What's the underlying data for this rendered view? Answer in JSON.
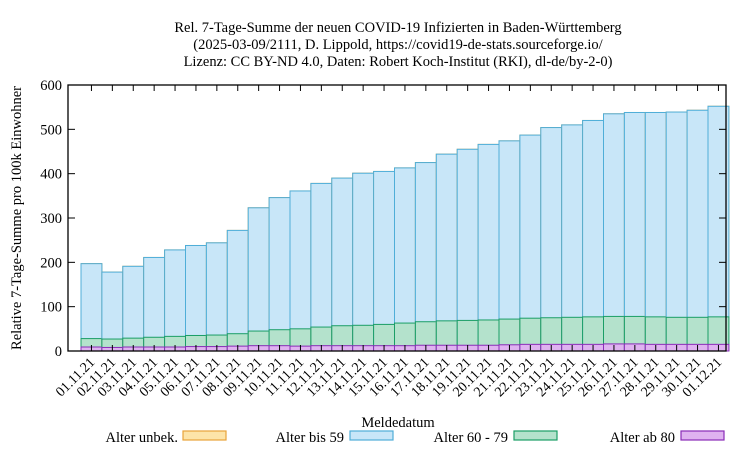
{
  "chart_data": {
    "type": "bar",
    "stacked": true,
    "title_lines": [
      "Rel. 7-Tage-Summe der neuen COVID-19 Infizierten in Baden-Württemberg",
      "(2025-03-09/2111, D. Lippold, https://covid19-de-stats.sourceforge.io/",
      "Lizenz: CC BY-ND 4.0, Daten: Robert Koch-Institut (RKI), dl-de/by-2-0)"
    ],
    "xlabel": "Meldedatum",
    "ylabel": "Relative 7-Tage-Summe pro 100k Einwohner",
    "ylim": [
      0,
      600
    ],
    "yticks": [
      0,
      100,
      200,
      300,
      400,
      500,
      600
    ],
    "grid": false,
    "legend_position": "bottom",
    "categories": [
      "01.11.21",
      "02.11.21",
      "03.11.21",
      "04.11.21",
      "05.11.21",
      "06.11.21",
      "07.11.21",
      "08.11.21",
      "09.11.21",
      "10.11.21",
      "11.11.21",
      "12.11.21",
      "13.11.21",
      "14.11.21",
      "15.11.21",
      "16.11.21",
      "17.11.21",
      "18.11.21",
      "19.11.21",
      "20.11.21",
      "21.11.21",
      "22.11.21",
      "23.11.21",
      "24.11.21",
      "25.11.21",
      "26.11.21",
      "27.11.21",
      "28.11.21",
      "29.11.21",
      "30.11.21",
      "01.12.21"
    ],
    "series": [
      {
        "name": "Alter unbek.",
        "fill": "#fde4a8",
        "stroke": "#e8a33a",
        "values": [
          0,
          0,
          0,
          0,
          0,
          0,
          0,
          0,
          0,
          0,
          0,
          0,
          0,
          0,
          0,
          0,
          0,
          0,
          0,
          0,
          0,
          0,
          0,
          0,
          0,
          0,
          0,
          0,
          0,
          0,
          0
        ]
      },
      {
        "name": "Alter bis 59",
        "fill": "#c8e6f8",
        "stroke": "#4faed8",
        "values": [
          169,
          151,
          162,
          180,
          195,
          203,
          208,
          233,
          278,
          298,
          311,
          324,
          333,
          343,
          345,
          350,
          359,
          376,
          386,
          396,
          402,
          413,
          429,
          434,
          443,
          457,
          460,
          461,
          463,
          467,
          475
        ]
      },
      {
        "name": "Alter 60 - 79",
        "fill": "#b4e2cc",
        "stroke": "#1a9e66",
        "values": [
          19,
          19,
          20,
          22,
          24,
          25,
          26,
          28,
          33,
          36,
          39,
          42,
          45,
          46,
          48,
          51,
          53,
          55,
          56,
          57,
          58,
          59,
          60,
          61,
          62,
          62,
          62,
          62,
          61,
          61,
          62
        ]
      },
      {
        "name": "Alter ab 80",
        "fill": "#dfb2f0",
        "stroke": "#8a2cb8",
        "values": [
          9,
          8,
          9,
          9,
          9,
          10,
          10,
          11,
          12,
          12,
          11,
          12,
          12,
          12,
          12,
          12,
          13,
          13,
          13,
          13,
          14,
          15,
          15,
          15,
          15,
          16,
          16,
          15,
          15,
          15,
          15
        ]
      }
    ]
  }
}
